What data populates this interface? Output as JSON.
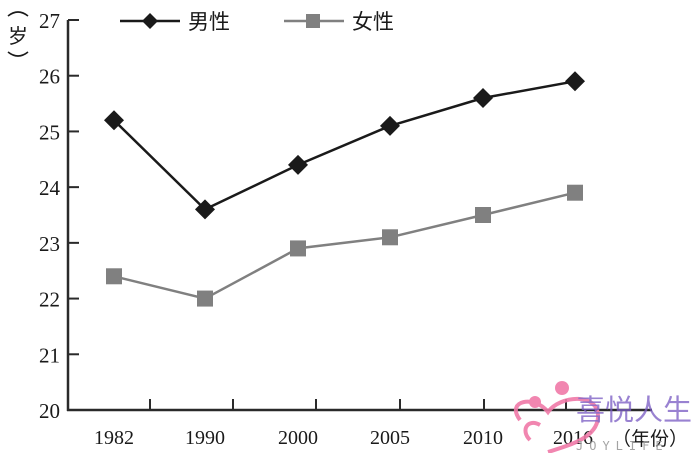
{
  "chart_data": {
    "type": "line",
    "title": "",
    "xlabel": "年份",
    "ylabel": "岁",
    "categories": [
      "1982",
      "1990",
      "2000",
      "2005",
      "2010",
      "2016"
    ],
    "series": [
      {
        "name": "男性",
        "marker": "diamond",
        "color": "#1a1a1a",
        "values": [
          25.2,
          23.6,
          24.4,
          25.1,
          25.6,
          25.9
        ]
      },
      {
        "name": "女性",
        "marker": "square",
        "color": "#808080",
        "values": [
          22.4,
          22.0,
          22.9,
          23.1,
          23.5,
          23.9
        ]
      }
    ],
    "ylim": [
      20,
      27
    ],
    "yticks": [
      "20",
      "21",
      "22",
      "23",
      "24",
      "25",
      "26",
      "27"
    ],
    "grid": false,
    "legend_position": "top"
  },
  "axis": {
    "y_label": "岁",
    "x_unit": "（年份）"
  },
  "legend": {
    "male": "男性",
    "female": "女性"
  },
  "watermark": {
    "text": "喜悦人生",
    "sub": "JOYLIFE",
    "heart_color": "#f07aa8",
    "text_color": "#7b5cc4"
  }
}
